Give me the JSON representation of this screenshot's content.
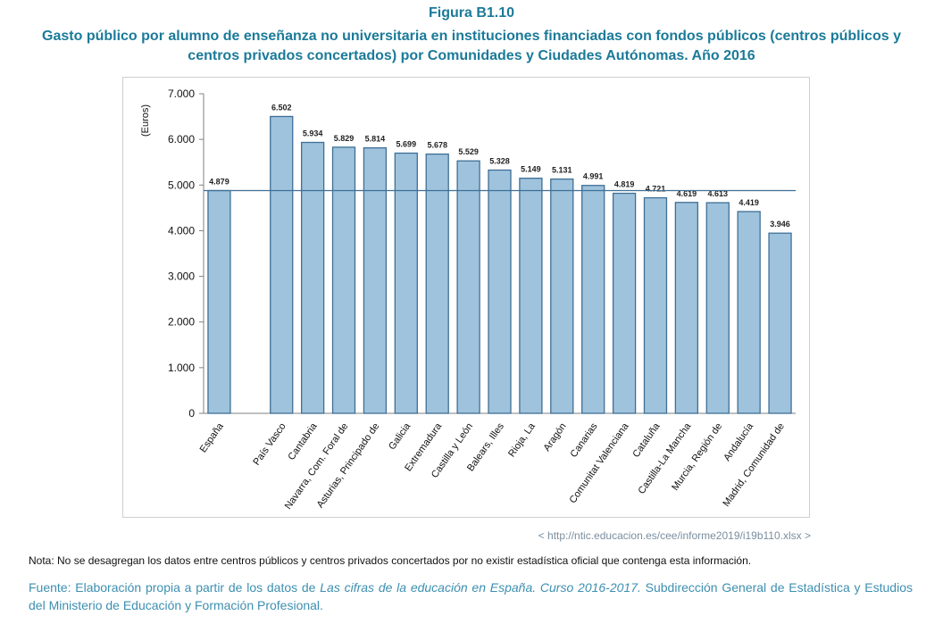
{
  "figure": {
    "label": "Figura B1.10",
    "title": "Gasto público por alumno de enseñanza no universitaria en instituciones financiadas con fondos públicos (centros públicos y centros privados concertados) por Comunidades y Ciudades Autónomas. Año 2016"
  },
  "chart_data": {
    "type": "bar",
    "ylabel": "(Euros)",
    "xlabel": "",
    "ylim": [
      0,
      7000
    ],
    "yticks": [
      0,
      1000,
      2000,
      3000,
      4000,
      5000,
      6000,
      7000
    ],
    "ytick_labels": [
      "0",
      "1.000",
      "2.000",
      "3.000",
      "4.000",
      "5.000",
      "6.000",
      "7.000"
    ],
    "reference_line": 4879,
    "grid": false,
    "categories": [
      "España",
      "País Vasco",
      "Cantabria",
      "Navarra, Com. Foral de",
      "Asturias, Principado de",
      "Galicia",
      "Extremadura",
      "Castilla y León",
      "Balears, Illes",
      "Rioja, La",
      "Aragón",
      "Canarias",
      "Comunitat Valenciana",
      "Cataluña",
      "Castilla-La Mancha",
      "Murcia, Región de",
      "Andalucía",
      "Madrid, Comunidad de"
    ],
    "values": [
      4879,
      6502,
      5934,
      5829,
      5814,
      5699,
      5678,
      5529,
      5328,
      5149,
      5131,
      4991,
      4819,
      4721,
      4619,
      4613,
      4419,
      3946
    ],
    "value_labels": [
      "4.879",
      "6.502",
      "5.934",
      "5.829",
      "5.814",
      "5.699",
      "5.678",
      "5.529",
      "5.328",
      "5.149",
      "5.131",
      "4.991",
      "4.819",
      "4.721",
      "4.619",
      "4.613",
      "4.419",
      "3.946"
    ],
    "colors": {
      "bar_fill": "#9fc3dc",
      "bar_stroke": "#3f6f96",
      "reference_line": "#3f6f96",
      "axis": "#808080"
    }
  },
  "footer": {
    "source_link": "< http://ntic.educacion.es/cee/informe2019/i19b110.xlsx >",
    "note": "Nota: No se desagregan los datos entre centros públicos y centros privados concertados por no existir estadística oficial que contenga esta información.",
    "fuente_prefix": "Fuente: Elaboración propia a partir de los datos de ",
    "fuente_italic": "Las cifras de la educación en España. Curso 2016-2017.",
    "fuente_suffix": " Subdirección General de Estadística y Estudios del Ministerio de Educación y Formación Profesional."
  }
}
